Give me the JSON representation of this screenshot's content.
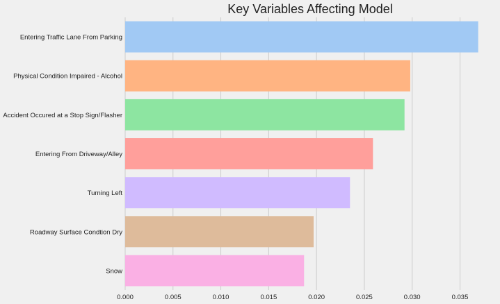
{
  "chart_data": {
    "type": "bar",
    "orientation": "horizontal",
    "title": "Key Variables Affecting Model",
    "xlabel": "",
    "ylabel": "",
    "categories": [
      "Entering Traffic Lane From Parking",
      "Physical Condition Impaired - Alcohol",
      "Accident Occured at a Stop Sign/Flasher",
      "Entering From Driveway/Alley",
      "Turning Left",
      "Roadway Surface Condtion Dry",
      "Snow"
    ],
    "values": [
      0.0369,
      0.0298,
      0.0292,
      0.0259,
      0.0235,
      0.0197,
      0.0187
    ],
    "colors": [
      "#a1c9f4",
      "#ffb482",
      "#8de5a1",
      "#ff9f9b",
      "#d0bbff",
      "#debb9b",
      "#fab0e4"
    ],
    "xlim": [
      0,
      0.037
    ],
    "xticks": [
      0.0,
      0.005,
      0.01,
      0.015,
      0.02,
      0.025,
      0.03,
      0.035
    ],
    "xtick_labels": [
      "0.000",
      "0.005",
      "0.010",
      "0.015",
      "0.020",
      "0.025",
      "0.030",
      "0.035"
    ],
    "grid": true,
    "background": "#f0f0f0"
  }
}
